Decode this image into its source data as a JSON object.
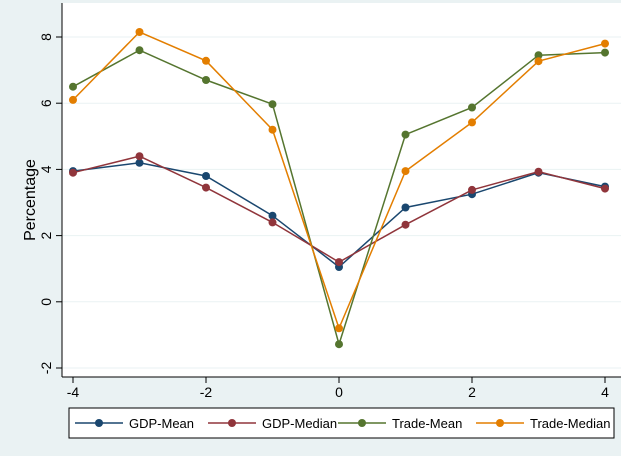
{
  "chart_data": {
    "type": "line",
    "title": "",
    "xlabel": "",
    "ylabel": "Percentage",
    "xlim": [
      -4,
      4
    ],
    "ylim": [
      -2.3,
      8.5
    ],
    "x_ticks": [
      -4,
      -2,
      0,
      2,
      4
    ],
    "y_ticks": [
      -2,
      0,
      2,
      4,
      6,
      8
    ],
    "grid": true,
    "legend_position": "bottom",
    "x": [
      -4,
      -3,
      -2,
      -1,
      0,
      1,
      2,
      3,
      4
    ],
    "series": [
      {
        "name": "GDP-Mean",
        "color": "#1a476f",
        "values": [
          3.95,
          4.2,
          3.8,
          2.6,
          1.05,
          2.85,
          3.25,
          3.9,
          3.48
        ]
      },
      {
        "name": "GDP-Median",
        "color": "#90353b",
        "values": [
          3.9,
          4.4,
          3.45,
          2.4,
          1.2,
          2.33,
          3.38,
          3.93,
          3.42
        ]
      },
      {
        "name": "Trade-Mean",
        "color": "#55752f",
        "values": [
          6.5,
          7.6,
          6.7,
          5.97,
          -1.28,
          5.05,
          5.87,
          7.45,
          7.53
        ]
      },
      {
        "name": "Trade-Median",
        "color": "#e37e00",
        "values": [
          6.1,
          8.15,
          7.28,
          5.2,
          -0.8,
          3.95,
          5.42,
          7.27,
          7.8
        ]
      }
    ]
  }
}
